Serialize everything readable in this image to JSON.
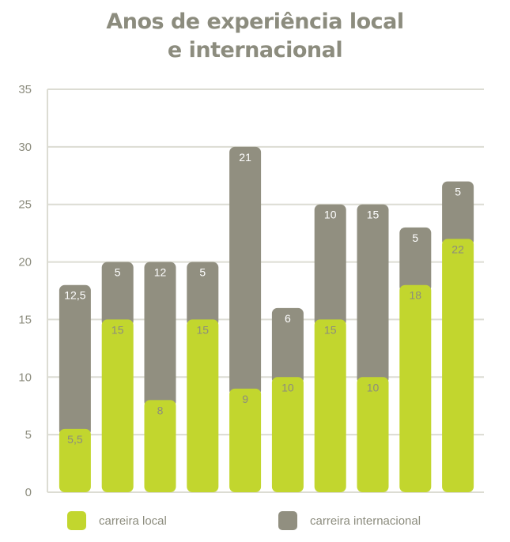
{
  "chart_data": {
    "type": "bar",
    "stacked": true,
    "title": [
      "Anos de experiência local",
      "e internacional"
    ],
    "ylim": [
      0,
      35
    ],
    "yticks": [
      0,
      5,
      10,
      15,
      20,
      25,
      30,
      35
    ],
    "grid": true,
    "legend_position": "bottom",
    "series": [
      {
        "name": "carreira local",
        "color": "#c2d62e",
        "values": [
          5.5,
          15,
          8,
          15,
          9,
          10,
          15,
          10,
          18,
          22
        ],
        "labels": [
          "5,5",
          "15",
          "8",
          "15",
          "9",
          "10",
          "15",
          "10",
          "18",
          "22"
        ]
      },
      {
        "name": "carreira internacional",
        "color": "#918f80",
        "values": [
          12.5,
          5,
          12,
          5,
          21,
          6,
          10,
          15,
          5,
          5
        ],
        "labels": [
          "12,5",
          "5",
          "12",
          "5",
          "21",
          "6",
          "10",
          "15",
          "5",
          "5"
        ]
      }
    ]
  }
}
